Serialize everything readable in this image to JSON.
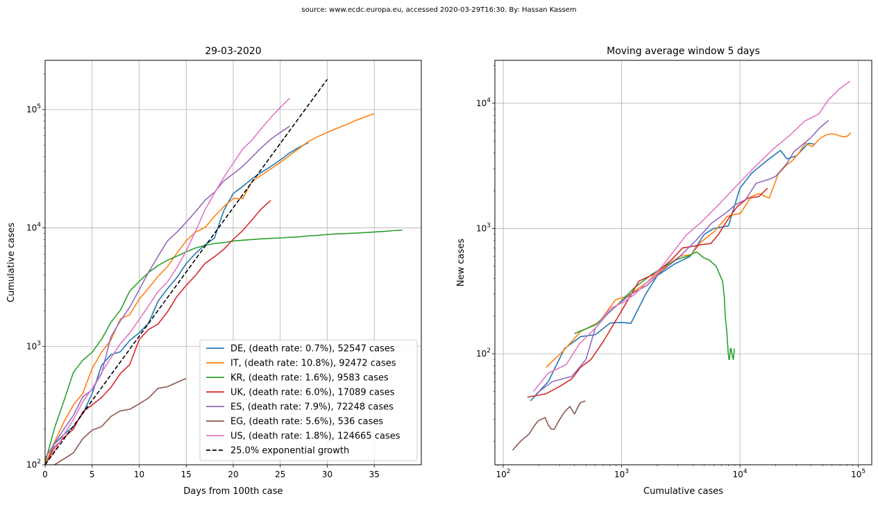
{
  "figure": {
    "suptitle": "source: www.ecdc.europa.eu, accessed 2020-03-29T16:30. By: Hassan Kassem"
  },
  "colors": {
    "DE": "#1f77b4",
    "IT": "#ff7f0e",
    "KR": "#2ca02c",
    "UK": "#d62728",
    "ES": "#9467bd",
    "EG": "#8c564b",
    "US": "#e377c2",
    "growth": "#000000",
    "grid": "#b0b0b0"
  },
  "chart_data": [
    {
      "type": "line",
      "title": "29-03-2020",
      "xlabel": "Days from 100th case",
      "ylabel": "Cumulative cases",
      "x_scale": "linear",
      "y_scale": "log",
      "xlim": [
        0,
        40
      ],
      "ylim": [
        100,
        260000
      ],
      "x_ticks": [
        0,
        5,
        10,
        15,
        20,
        25,
        30,
        35
      ],
      "y_ticks": [
        100,
        1000,
        10000,
        100000
      ],
      "y_tick_labels": [
        "10^2",
        "10^3",
        "10^4",
        "10^5"
      ],
      "grid": true,
      "legend_position": "lower-right",
      "series": [
        {
          "key": "DE",
          "name": "DE, (death rate: 0.7%), 52547 cases",
          "x": [
            0,
            1,
            2,
            3,
            4,
            5,
            6,
            7,
            8,
            9,
            10,
            11,
            12,
            13,
            14,
            15,
            16,
            17,
            18,
            19,
            20,
            21,
            22,
            23,
            24,
            25,
            26,
            27,
            28
          ],
          "y": [
            100,
            150,
            180,
            210,
            270,
            400,
            690,
            850,
            900,
            1120,
            1300,
            1570,
            2400,
            3060,
            3800,
            5000,
            6100,
            7200,
            8200,
            14000,
            19500,
            22400,
            26000,
            29500,
            33000,
            37500,
            43000,
            48000,
            52547
          ]
        },
        {
          "key": "IT",
          "name": "IT, (death rate: 10.8%), 92472 cases",
          "x": [
            0,
            1,
            2,
            3,
            4,
            5,
            6,
            7,
            8,
            9,
            10,
            11,
            12,
            13,
            14,
            15,
            16,
            17,
            18,
            19,
            20,
            21,
            22,
            23,
            24,
            25,
            26,
            27,
            28,
            29,
            30,
            31,
            32,
            33,
            34,
            35
          ],
          "y": [
            100,
            155,
            230,
            320,
            400,
            650,
            890,
            1130,
            1700,
            1850,
            2500,
            3100,
            3900,
            4700,
            6100,
            7800,
            9200,
            10100,
            12500,
            15100,
            17700,
            17700,
            24700,
            27900,
            31500,
            35700,
            41000,
            47000,
            53600,
            59100,
            63900,
            69200,
            74400,
            80600,
            86500,
            92472
          ]
        },
        {
          "key": "KR",
          "name": "KR, (death rate: 1.6%), 9583 cases",
          "x": [
            0,
            1,
            2,
            3,
            4,
            5,
            6,
            7,
            8,
            9,
            10,
            11,
            12,
            13,
            14,
            15,
            16,
            17,
            18,
            19,
            20,
            21,
            22,
            23,
            24,
            25,
            26,
            27,
            28,
            29,
            30,
            31,
            32,
            33,
            34,
            35,
            36,
            37,
            38
          ],
          "y": [
            104,
            204,
            346,
            602,
            763,
            893,
            1146,
            1595,
            2022,
            2931,
            3526,
            4212,
            4812,
            5328,
            5766,
            6284,
            6767,
            7134,
            7382,
            7513,
            7755,
            7869,
            7979,
            8086,
            8162,
            8236,
            8320,
            8413,
            8565,
            8652,
            8799,
            8897,
            8961,
            9037,
            9137,
            9241,
            9332,
            9478,
            9583
          ]
        },
        {
          "key": "UK",
          "name": "UK, (death rate: 6.0%), 17089 cases",
          "x": [
            0,
            1,
            2,
            3,
            4,
            5,
            6,
            7,
            8,
            9,
            10,
            11,
            12,
            13,
            14,
            15,
            16,
            17,
            18,
            19,
            20,
            21,
            22,
            23,
            24
          ],
          "y": [
            100,
            140,
            170,
            200,
            280,
            320,
            370,
            450,
            590,
            700,
            1140,
            1390,
            1540,
            1950,
            2630,
            3270,
            3980,
            5020,
            5700,
            6600,
            8000,
            9500,
            11700,
            14500,
            17089
          ]
        },
        {
          "key": "ES",
          "name": "ES, (death rate: 7.9%), 72248 cases",
          "x": [
            0,
            1,
            2,
            3,
            4,
            5,
            6,
            7,
            8,
            9,
            10,
            11,
            12,
            13,
            14,
            15,
            16,
            17,
            18,
            19,
            20,
            21,
            22,
            23,
            24,
            25,
            26
          ],
          "y": [
            114,
            151,
            200,
            261,
            374,
            430,
            589,
            1204,
            1639,
            2140,
            3004,
            4231,
            5753,
            7753,
            9191,
            11178,
            13716,
            17147,
            19980,
            24926,
            28572,
            33089,
            39673,
            47610,
            56188,
            64059,
            72248
          ]
        },
        {
          "key": "EG",
          "name": "EG, (death rate: 5.6%), 536 cases",
          "x": [
            0,
            1,
            2,
            3,
            4,
            5,
            6,
            7,
            8,
            9,
            10,
            11,
            12,
            13,
            14,
            15
          ],
          "y": [
            80,
            100,
            112,
            126,
            166,
            196,
            210,
            256,
            285,
            294,
            327,
            366,
            442,
            456,
            495,
            536
          ]
        },
        {
          "key": "US",
          "name": "US, (death rate: 1.8%), 124665 cases",
          "x": [
            0,
            1,
            2,
            3,
            4,
            5,
            6,
            7,
            8,
            9,
            10,
            11,
            12,
            13,
            14,
            15,
            16,
            17,
            18,
            19,
            20,
            21,
            22,
            23,
            24,
            25,
            26
          ],
          "y": [
            100,
            130,
            180,
            240,
            340,
            440,
            600,
            800,
            1050,
            1300,
            1680,
            2200,
            2900,
            3500,
            4600,
            6400,
            9400,
            14250,
            19600,
            26700,
            35200,
            46400,
            55200,
            69200,
            85400,
            104000,
            124665
          ]
        },
        {
          "key": "growth",
          "name": "25.0% exponential growth",
          "dashed": true,
          "x": [
            0,
            30
          ],
          "y": [
            100,
            180000
          ]
        }
      ]
    },
    {
      "type": "line",
      "title": "Moving average window 5 days",
      "xlabel": "Cumulative cases",
      "ylabel": "New cases",
      "x_scale": "log",
      "y_scale": "log",
      "xlim": [
        85,
        130000
      ],
      "ylim": [
        13,
        22000
      ],
      "x_ticks": [
        100,
        1000,
        10000,
        100000
      ],
      "x_tick_labels": [
        "10^2",
        "10^3",
        "10^4",
        "10^5"
      ],
      "y_ticks": [
        100,
        1000,
        10000
      ],
      "y_tick_labels": [
        "10^2",
        "10^3",
        "10^4"
      ],
      "grid": true,
      "series": [
        {
          "key": "DE",
          "x": [
            170,
            240,
            330,
            450,
            600,
            800,
            1000,
            1200,
            1600,
            2000,
            2800,
            3800,
            5000,
            6000,
            8000,
            10000,
            12500,
            14500,
            17000,
            22000,
            25000,
            30000,
            38000,
            43000
          ],
          "y": [
            42,
            60,
            110,
            137,
            142,
            176,
            178,
            175,
            300,
            420,
            520,
            600,
            900,
            1000,
            1050,
            2100,
            2750,
            3100,
            3500,
            4200,
            3600,
            3800,
            4800,
            4700
          ]
        },
        {
          "key": "IT",
          "x": [
            230,
            320,
            450,
            650,
            890,
            1130,
            1700,
            2500,
            3100,
            3900,
            4700,
            6100,
            7800,
            9200,
            10100,
            12500,
            14500,
            17700,
            21000,
            24700,
            27900,
            31500,
            35700,
            41000,
            47000,
            53600,
            59100,
            63900,
            69200,
            74400,
            80600,
            86500
          ],
          "y": [
            78,
            105,
            150,
            180,
            270,
            290,
            380,
            520,
            600,
            620,
            780,
            950,
            1250,
            1300,
            1320,
            1800,
            1900,
            1750,
            2700,
            3200,
            3500,
            4000,
            4800,
            4500,
            5200,
            5600,
            5700,
            5650,
            5500,
            5400,
            5450,
            5800
          ]
        },
        {
          "key": "KR",
          "x": [
            400,
            600,
            900,
            1300,
            1800,
            2400,
            3000,
            3600,
            4300,
            5000,
            5500,
            6300,
            7134,
            7382,
            7513,
            7755,
            7869,
            7979,
            8086,
            8162,
            8236,
            8320,
            8413,
            8565,
            8652,
            8799,
            8897,
            8961
          ],
          "y": [
            145,
            170,
            240,
            340,
            430,
            510,
            570,
            600,
            650,
            580,
            560,
            500,
            380,
            280,
            200,
            150,
            120,
            100,
            90,
            90,
            100,
            110,
            110,
            100,
            95,
            90,
            100,
            110
          ]
        },
        {
          "key": "UK",
          "x": [
            160,
            230,
            300,
            380,
            450,
            550,
            700,
            1000,
            1400,
            1950,
            2630,
            3270,
            3980,
            5020,
            5700,
            6600,
            8000,
            9500,
            11700,
            14500,
            17089
          ],
          "y": [
            45,
            48,
            55,
            63,
            78,
            90,
            125,
            220,
            380,
            440,
            560,
            700,
            720,
            750,
            760,
            900,
            1200,
            1500,
            1750,
            1800,
            2100
          ]
        },
        {
          "key": "ES",
          "x": [
            190,
            260,
            380,
            500,
            600,
            800,
            1204,
            1639,
            2140,
            3004,
            4231,
            5753,
            7753,
            9191,
            11178,
            13716,
            17147,
            19980,
            24926,
            28572,
            33089,
            39673,
            47610,
            56188
          ],
          "y": [
            48,
            60,
            66,
            90,
            160,
            220,
            300,
            350,
            450,
            580,
            800,
            1100,
            1350,
            1550,
            1700,
            2300,
            2450,
            2600,
            3300,
            4100,
            4600,
            5300,
            6400,
            7300
          ]
        },
        {
          "key": "EG",
          "x": [
            120,
            140,
            166,
            180,
            196,
            210,
            226,
            240,
            256,
            270,
            294,
            327,
            366,
            400,
            442,
            456,
            495
          ],
          "y": [
            17,
            20,
            23,
            26,
            29,
            30,
            31,
            27,
            25,
            25,
            29,
            34,
            38,
            33,
            40,
            41,
            42
          ]
        },
        {
          "key": "US",
          "x": [
            180,
            240,
            340,
            440,
            600,
            800,
            1050,
            1300,
            1680,
            2200,
            2900,
            3500,
            4600,
            6400,
            9400,
            14250,
            19600,
            26700,
            35200,
            46400,
            55200,
            69200,
            85400
          ],
          "y": [
            50,
            70,
            82,
            120,
            160,
            230,
            260,
            300,
            380,
            500,
            700,
            880,
            1100,
            1500,
            2200,
            3300,
            4400,
            5600,
            7200,
            8200,
            10500,
            13000,
            15000
          ]
        }
      ]
    }
  ]
}
